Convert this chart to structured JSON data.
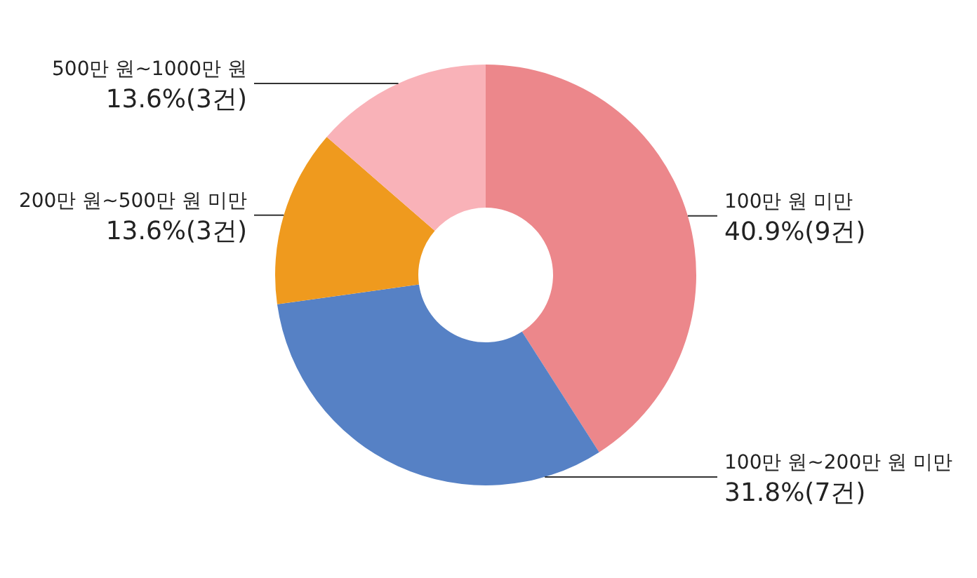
{
  "chart_data": {
    "type": "donut",
    "categories": [
      "100만 원 미만",
      "100만 원~200만 원 미만",
      "200만 원~500만 원 미만",
      "500만 원~1000만 원"
    ],
    "values": [
      40.9,
      31.8,
      13.6,
      13.6
    ],
    "colors": [
      "#ec878b",
      "#5681c5",
      "#ef9a1e",
      "#f9b2b8"
    ],
    "value_labels": [
      "40.9%(9건)",
      "31.8%(7건)",
      "13.6%(3건)",
      "13.6%(3건)"
    ]
  }
}
